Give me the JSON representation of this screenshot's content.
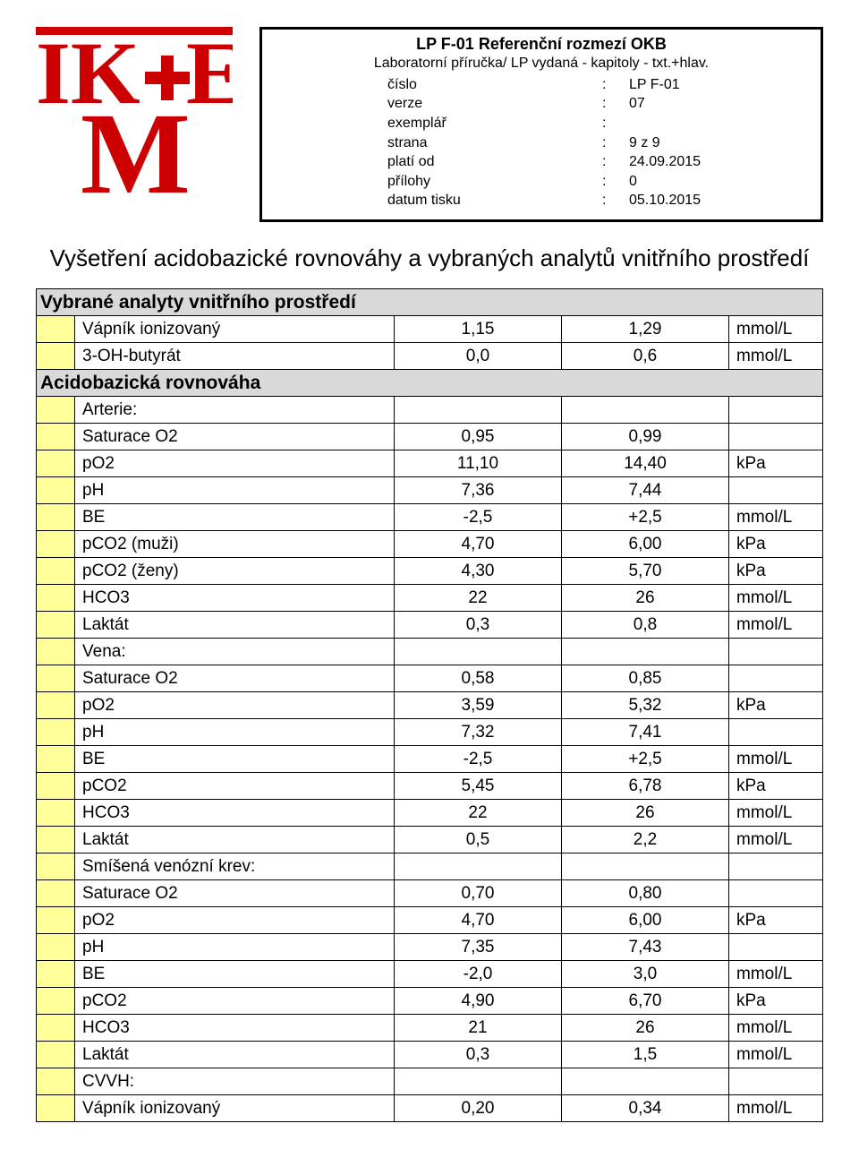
{
  "header": {
    "title": "LP F-01 Referenční rozmezí OKB",
    "subtitle": "Laboratorní příručka/ LP vydaná - kapitoly - txt.+hlav.",
    "meta": [
      {
        "label": "číslo",
        "value": "LP F-01"
      },
      {
        "label": "verze",
        "value": "07"
      },
      {
        "label": "exemplář",
        "value": ""
      },
      {
        "label": "strana",
        "value": "9 z  9"
      },
      {
        "label": "platí od",
        "value": "24.09.2015"
      },
      {
        "label": "přílohy",
        "value": "0"
      },
      {
        "label": "datum tisku",
        "value": "05.10.2015"
      }
    ]
  },
  "section_title": "Vyšetření acidobazické rovnováhy a vybraných analytů vnitřního prostředí",
  "rows": [
    {
      "type": "header",
      "label": "Vybrané analyty vnitřního prostředí"
    },
    {
      "type": "data",
      "name": "Vápník ionizovaný",
      "v1": "1,15",
      "v2": "1,29",
      "unit": "mmol/L"
    },
    {
      "type": "data",
      "name": "3-OH-butyrát",
      "v1": "0,0",
      "v2": "0,6",
      "unit": "mmol/L"
    },
    {
      "type": "header",
      "label": "Acidobazická rovnováha"
    },
    {
      "type": "data",
      "name": "Arterie:",
      "v1": "",
      "v2": "",
      "unit": ""
    },
    {
      "type": "data",
      "name": "Saturace O2",
      "v1": "0,95",
      "v2": "0,99",
      "unit": ""
    },
    {
      "type": "data",
      "name": "pO2",
      "v1": "11,10",
      "v2": "14,40",
      "unit": "kPa"
    },
    {
      "type": "data",
      "name": "pH",
      "v1": "7,36",
      "v2": "7,44",
      "unit": ""
    },
    {
      "type": "data",
      "name": "BE",
      "v1": "-2,5",
      "v2": "+2,5",
      "unit": "mmol/L"
    },
    {
      "type": "data",
      "name": "pCO2 (muži)",
      "v1": "4,70",
      "v2": "6,00",
      "unit": "kPa"
    },
    {
      "type": "data",
      "name": "pCO2 (ženy)",
      "v1": "4,30",
      "v2": "5,70",
      "unit": "kPa"
    },
    {
      "type": "data",
      "name": "HCO3",
      "v1": "22",
      "v2": "26",
      "unit": "mmol/L"
    },
    {
      "type": "data",
      "name": "Laktát",
      "v1": "0,3",
      "v2": "0,8",
      "unit": "mmol/L"
    },
    {
      "type": "data",
      "name": "Vena:",
      "v1": "",
      "v2": "",
      "unit": ""
    },
    {
      "type": "data",
      "name": "Saturace O2",
      "v1": "0,58",
      "v2": "0,85",
      "unit": ""
    },
    {
      "type": "data",
      "name": "pO2",
      "v1": "3,59",
      "v2": "5,32",
      "unit": "kPa"
    },
    {
      "type": "data",
      "name": "pH",
      "v1": "7,32",
      "v2": "7,41",
      "unit": ""
    },
    {
      "type": "data",
      "name": "BE",
      "v1": "-2,5",
      "v2": "+2,5",
      "unit": "mmol/L"
    },
    {
      "type": "data",
      "name": "pCO2",
      "v1": "5,45",
      "v2": "6,78",
      "unit": "kPa"
    },
    {
      "type": "data",
      "name": "HCO3",
      "v1": "22",
      "v2": "26",
      "unit": "mmol/L"
    },
    {
      "type": "data",
      "name": "Laktát",
      "v1": "0,5",
      "v2": "2,2",
      "unit": "mmol/L"
    },
    {
      "type": "data",
      "name": "Smíšená venózní krev:",
      "v1": "",
      "v2": "",
      "unit": ""
    },
    {
      "type": "data",
      "name": "Saturace O2",
      "v1": "0,70",
      "v2": "0,80",
      "unit": ""
    },
    {
      "type": "data",
      "name": "pO2",
      "v1": "4,70",
      "v2": "6,00",
      "unit": "kPa"
    },
    {
      "type": "data",
      "name": "pH",
      "v1": "7,35",
      "v2": "7,43",
      "unit": ""
    },
    {
      "type": "data",
      "name": "BE",
      "v1": "-2,0",
      "v2": "3,0",
      "unit": "mmol/L"
    },
    {
      "type": "data",
      "name": "pCO2",
      "v1": "4,90",
      "v2": "6,70",
      "unit": "kPa"
    },
    {
      "type": "data",
      "name": "HCO3",
      "v1": "21",
      "v2": "26",
      "unit": "mmol/L"
    },
    {
      "type": "data",
      "name": "Laktát",
      "v1": "0,3",
      "v2": "1,5",
      "unit": "mmol/L"
    },
    {
      "type": "data",
      "name": "CVVH:",
      "v1": "",
      "v2": "",
      "unit": ""
    },
    {
      "type": "data",
      "name": "Vápník ionizovaný",
      "v1": "0,20",
      "v2": "0,34",
      "unit": "mmol/L"
    }
  ],
  "colors": {
    "gap_bg": "#ffff99",
    "header_bg": "#d9d9d9",
    "logo_red": "#cc0000"
  }
}
